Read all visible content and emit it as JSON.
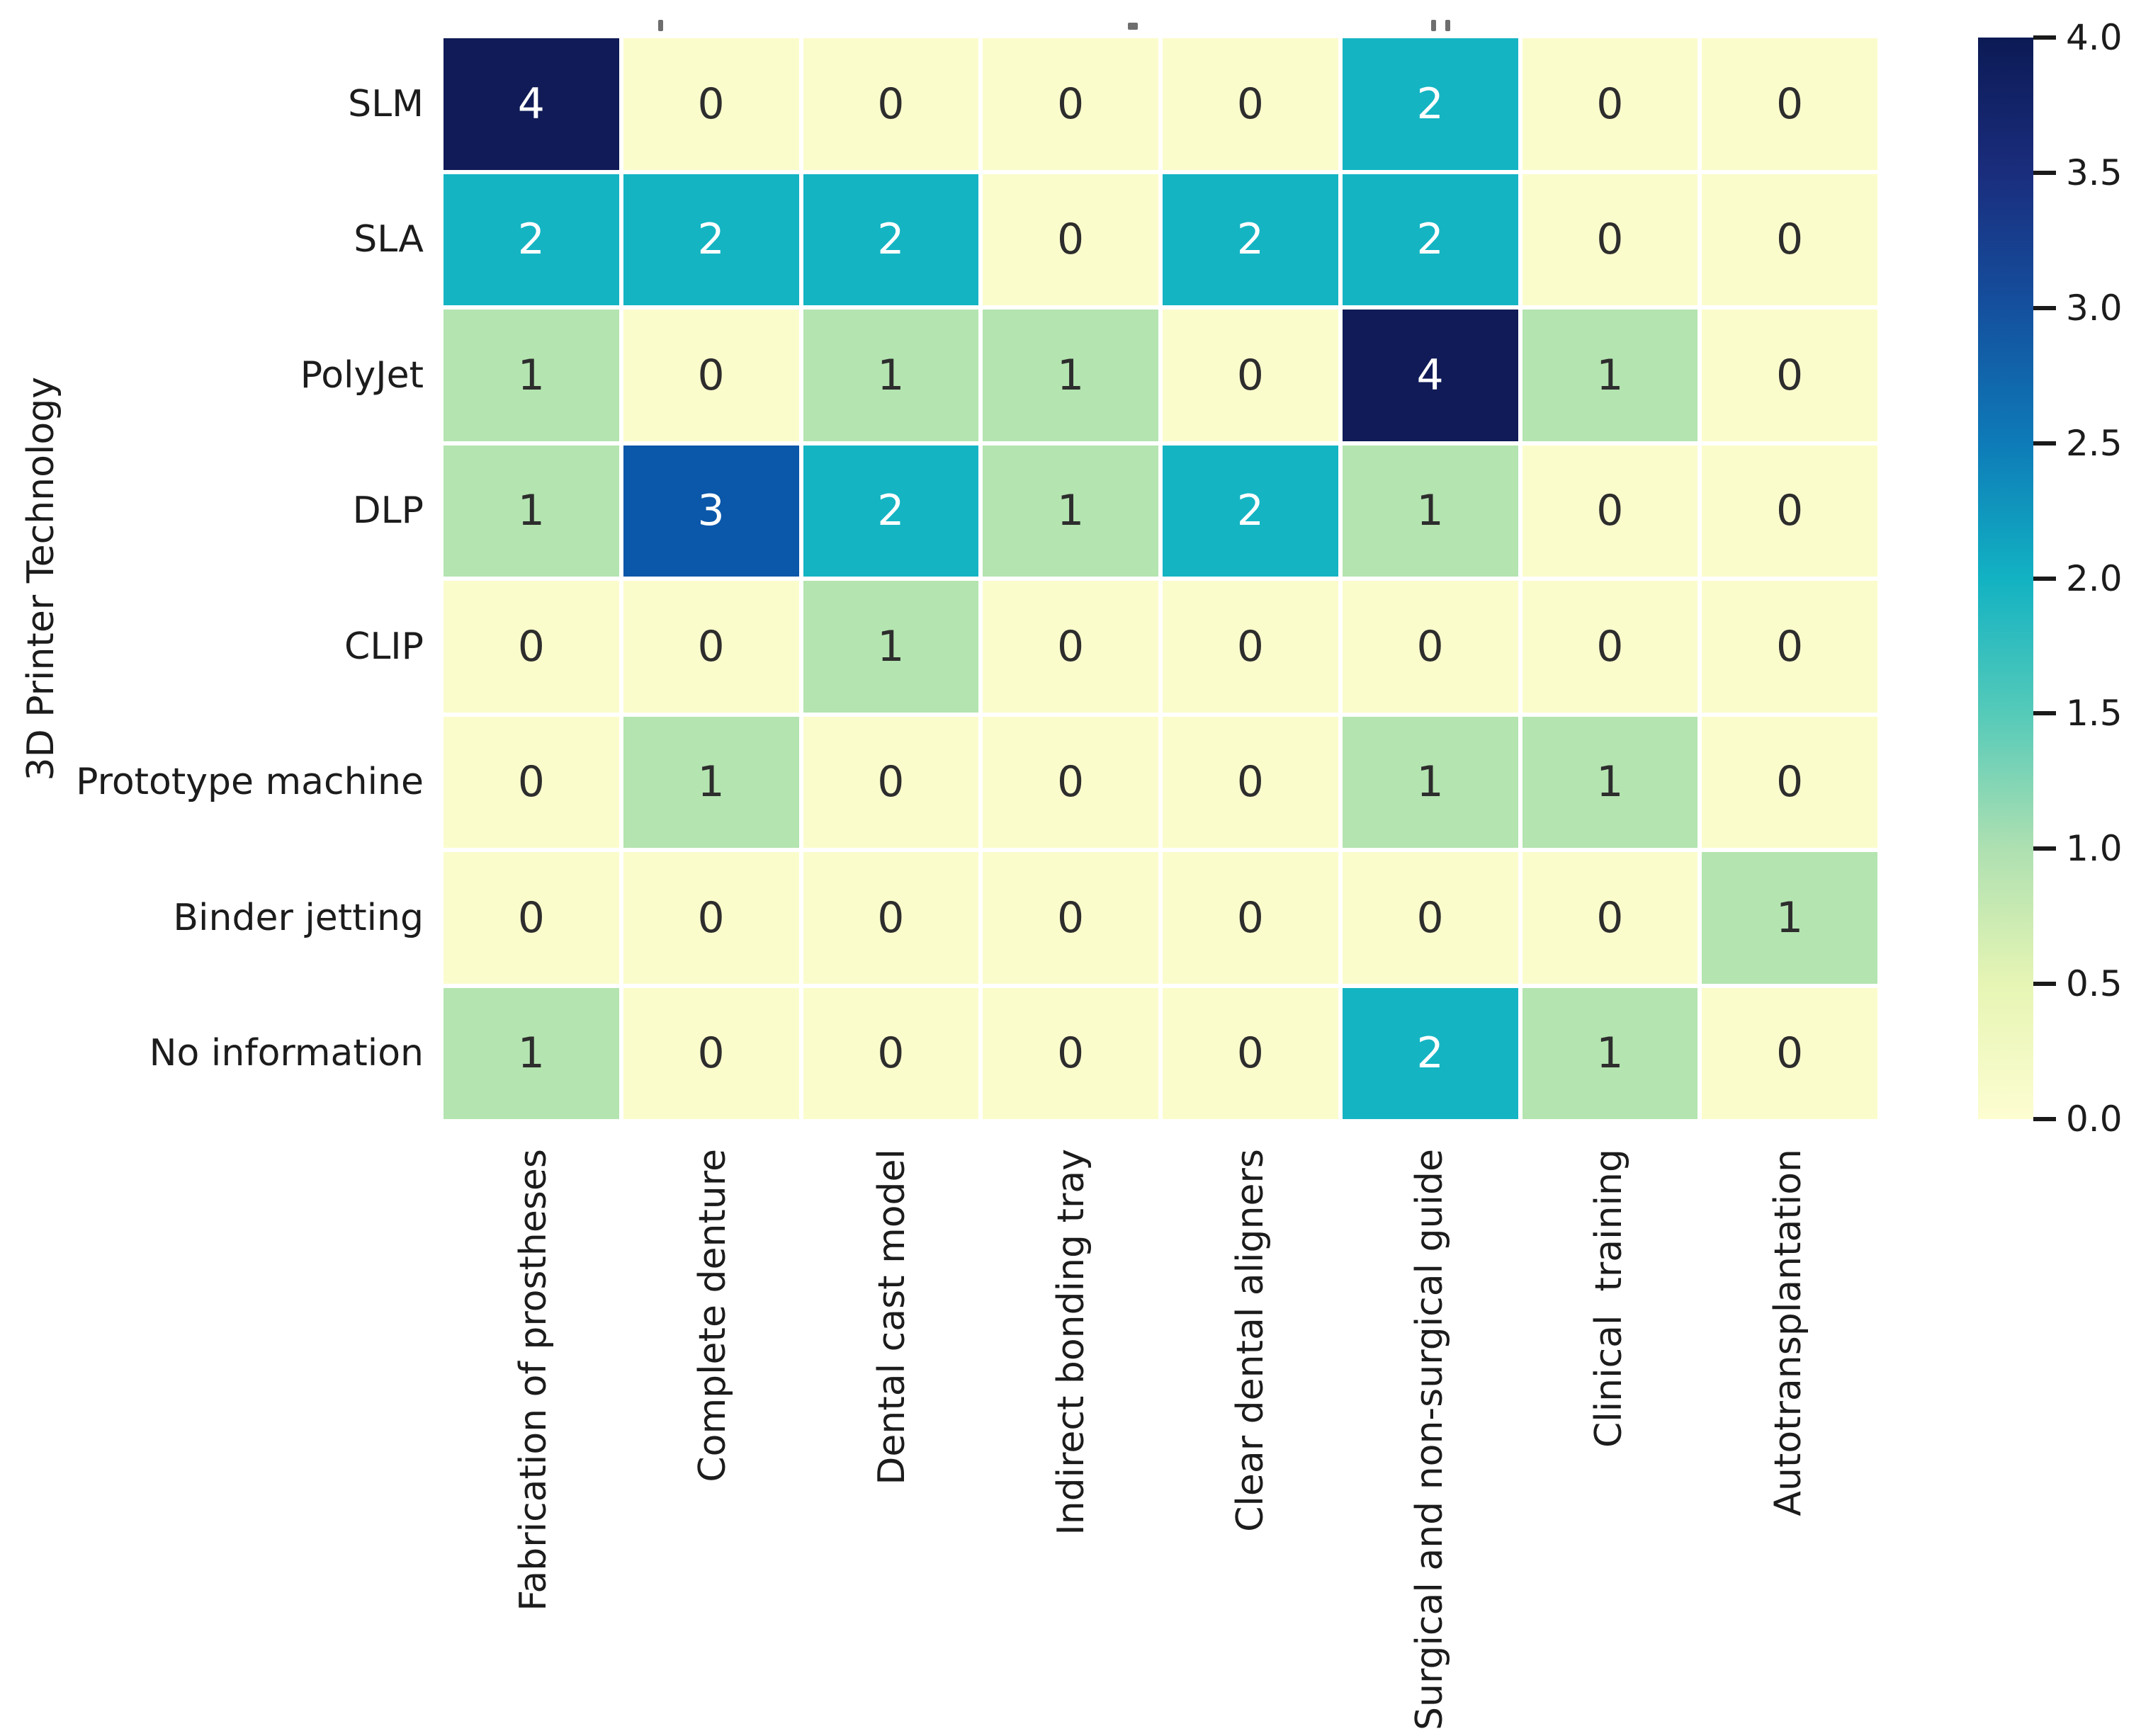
{
  "chart_data": {
    "type": "heatmap",
    "title": "",
    "xlabel": "",
    "ylabel": "3D Printer Technology",
    "x_categories": [
      "Fabrication of prostheses",
      "Complete denture",
      "Dental cast model",
      "Indirect bonding tray",
      "Clear dental aligners",
      "Surgical and non-surgical guide",
      "Clinical  training",
      "Autotransplantation"
    ],
    "y_categories": [
      "SLM",
      "SLA",
      "PolyJet",
      "DLP",
      "CLIP",
      "Prototype machine",
      "Binder jetting",
      "No information"
    ],
    "values": [
      [
        4,
        0,
        0,
        0,
        0,
        2,
        0,
        0
      ],
      [
        2,
        2,
        2,
        0,
        2,
        2,
        0,
        0
      ],
      [
        1,
        0,
        1,
        1,
        0,
        4,
        1,
        0
      ],
      [
        1,
        3,
        2,
        1,
        2,
        1,
        0,
        0
      ],
      [
        0,
        0,
        1,
        0,
        0,
        0,
        0,
        0
      ],
      [
        0,
        1,
        0,
        0,
        0,
        1,
        1,
        0
      ],
      [
        0,
        0,
        0,
        0,
        0,
        0,
        0,
        1
      ],
      [
        1,
        0,
        0,
        0,
        0,
        2,
        1,
        0
      ]
    ],
    "colorbar": {
      "min": 0.0,
      "max": 4.0,
      "tick_labels": [
        "4.0",
        "3.5",
        "3.0",
        "2.5",
        "2.0",
        "1.5",
        "1.0",
        "0.5",
        "0.0"
      ],
      "position": "right"
    },
    "colormap_name": "YlGnBu",
    "cell_colors": {
      "0": "#fbfccc",
      "1": "#b4e4b0",
      "2": "#14b4c3",
      "3": "#0b57a9",
      "4": "#101b57"
    },
    "cell_text_colors": {
      "0": "#2d2d2d",
      "1": "#2d2d2d",
      "2": "#ffffff",
      "3": "#ffffff",
      "4": "#ffffff"
    },
    "grid_line_color": "#ffffff",
    "legend_position": "none",
    "annotations_on": true
  }
}
